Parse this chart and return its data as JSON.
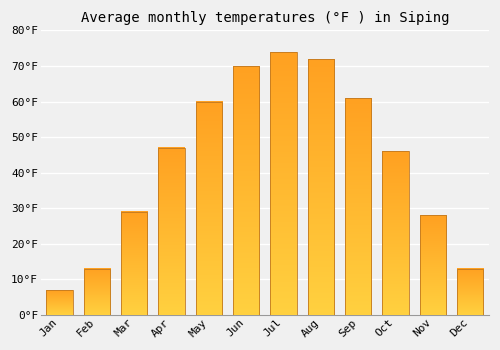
{
  "title": "Average monthly temperatures (°F ) in Siping",
  "months": [
    "Jan",
    "Feb",
    "Mar",
    "Apr",
    "May",
    "Jun",
    "Jul",
    "Aug",
    "Sep",
    "Oct",
    "Nov",
    "Dec"
  ],
  "values": [
    7,
    13,
    29,
    47,
    60,
    70,
    74,
    72,
    61,
    46,
    28,
    13
  ],
  "bar_color_bottom": "#FFD040",
  "bar_color_top": "#FFA020",
  "bar_edge_color": "#C07820",
  "ylim": [
    0,
    80
  ],
  "yticks": [
    0,
    10,
    20,
    30,
    40,
    50,
    60,
    70,
    80
  ],
  "ytick_labels": [
    "0°F",
    "10°F",
    "20°F",
    "30°F",
    "40°F",
    "50°F",
    "60°F",
    "70°F",
    "80°F"
  ],
  "background_color": "#f0f0f0",
  "grid_color": "#ffffff",
  "title_fontsize": 10,
  "tick_fontsize": 8,
  "bar_width": 0.7
}
